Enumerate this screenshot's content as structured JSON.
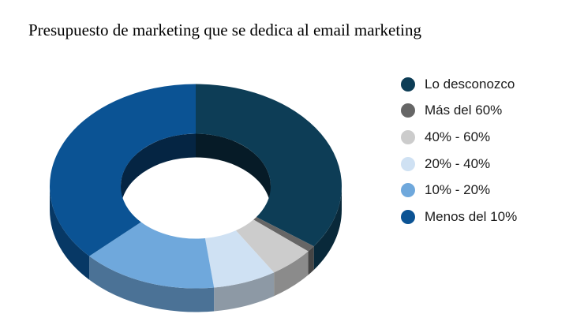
{
  "chart_data": {
    "type": "pie",
    "variant": "3d-donut",
    "title": "Presupuesto de marketing que se dedica al email marketing",
    "slices": [
      {
        "label": "Lo desconozco",
        "value": 35,
        "color": "#0d3d56"
      },
      {
        "label": "Más del 60%",
        "value": 1,
        "color": "#666666"
      },
      {
        "label": "40% - 60%",
        "value": 5,
        "color": "#cccccc"
      },
      {
        "label": "20% - 40%",
        "value": 7,
        "color": "#cfe1f3"
      },
      {
        "label": "10% - 20%",
        "value": 15,
        "color": "#6fa8dc"
      },
      {
        "label": "Menos del 10%",
        "value": 37,
        "color": "#0b5394"
      }
    ],
    "legend_position": "right"
  }
}
